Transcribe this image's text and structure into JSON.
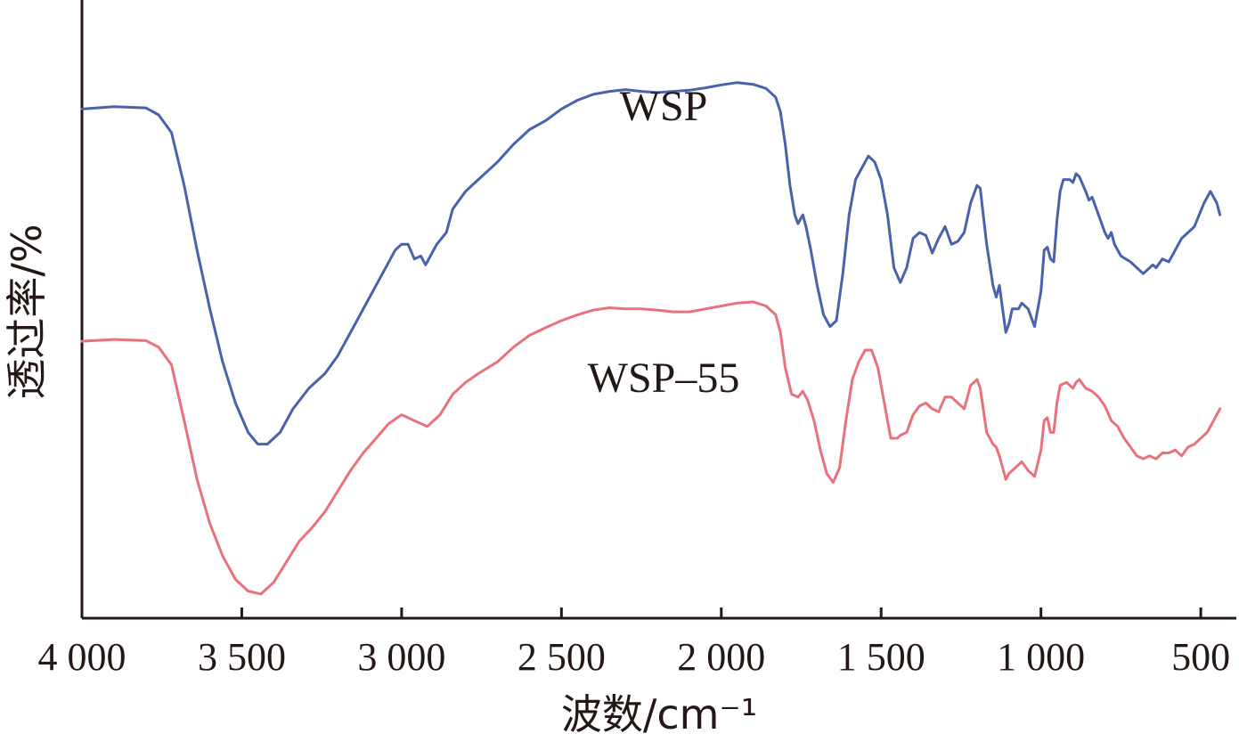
{
  "chart_data": {
    "type": "line",
    "xlabel": "波数/cm⁻¹",
    "ylabel": "透过率/%",
    "xlim": [
      4000,
      400
    ],
    "x_reversed": true,
    "y_ticks_shown": false,
    "grid": false,
    "xticks": [
      {
        "value": 4000,
        "label": "4 000"
      },
      {
        "value": 3500,
        "label": "3 500"
      },
      {
        "value": 3000,
        "label": "3 000"
      },
      {
        "value": 2500,
        "label": "2 500"
      },
      {
        "value": 2000,
        "label": "2 000"
      },
      {
        "value": 1500,
        "label": "1 500"
      },
      {
        "value": 1000,
        "label": "1 000"
      },
      {
        "value": 500,
        "label": "500"
      }
    ],
    "ylim": [
      0,
      100
    ],
    "series": [
      {
        "name": "WSP",
        "color": "#4a62ab",
        "points": [
          [
            4000,
            86
          ],
          [
            3900,
            86.4
          ],
          [
            3800,
            86.2
          ],
          [
            3760,
            85
          ],
          [
            3720,
            82
          ],
          [
            3680,
            73
          ],
          [
            3640,
            62
          ],
          [
            3600,
            52
          ],
          [
            3560,
            43
          ],
          [
            3520,
            36
          ],
          [
            3480,
            31
          ],
          [
            3450,
            29
          ],
          [
            3420,
            29
          ],
          [
            3380,
            31
          ],
          [
            3340,
            35
          ],
          [
            3290,
            38.5
          ],
          [
            3240,
            41
          ],
          [
            3200,
            44
          ],
          [
            3150,
            49
          ],
          [
            3100,
            54
          ],
          [
            3060,
            58
          ],
          [
            3020,
            62
          ],
          [
            3000,
            63
          ],
          [
            2980,
            63
          ],
          [
            2960,
            60.5
          ],
          [
            2940,
            61
          ],
          [
            2925,
            59.5
          ],
          [
            2910,
            61
          ],
          [
            2890,
            63
          ],
          [
            2860,
            65
          ],
          [
            2840,
            69
          ],
          [
            2800,
            72
          ],
          [
            2760,
            74
          ],
          [
            2700,
            77
          ],
          [
            2650,
            80
          ],
          [
            2600,
            82.5
          ],
          [
            2550,
            84
          ],
          [
            2500,
            86
          ],
          [
            2450,
            87.5
          ],
          [
            2400,
            88.5
          ],
          [
            2350,
            89
          ],
          [
            2300,
            89.3
          ],
          [
            2250,
            89
          ],
          [
            2200,
            88.8
          ],
          [
            2150,
            89
          ],
          [
            2100,
            89.2
          ],
          [
            2050,
            89.6
          ],
          [
            2000,
            90.1
          ],
          [
            1950,
            90.5
          ],
          [
            1900,
            90.2
          ],
          [
            1860,
            89.5
          ],
          [
            1830,
            88
          ],
          [
            1815,
            85.5
          ],
          [
            1800,
            80
          ],
          [
            1785,
            73
          ],
          [
            1770,
            68
          ],
          [
            1760,
            66.5
          ],
          [
            1745,
            68
          ],
          [
            1735,
            66
          ],
          [
            1720,
            62
          ],
          [
            1700,
            56
          ],
          [
            1680,
            51
          ],
          [
            1660,
            49
          ],
          [
            1640,
            50
          ],
          [
            1620,
            58
          ],
          [
            1600,
            68
          ],
          [
            1580,
            74
          ],
          [
            1560,
            76
          ],
          [
            1540,
            78
          ],
          [
            1520,
            77
          ],
          [
            1500,
            74
          ],
          [
            1480,
            68
          ],
          [
            1460,
            59
          ],
          [
            1440,
            56.5
          ],
          [
            1420,
            59
          ],
          [
            1400,
            64
          ],
          [
            1380,
            65
          ],
          [
            1360,
            64.5
          ],
          [
            1340,
            61.5
          ],
          [
            1320,
            64
          ],
          [
            1300,
            66
          ],
          [
            1280,
            63
          ],
          [
            1260,
            63.5
          ],
          [
            1240,
            65
          ],
          [
            1220,
            70
          ],
          [
            1200,
            73
          ],
          [
            1190,
            72.5
          ],
          [
            1170,
            63
          ],
          [
            1150,
            56
          ],
          [
            1140,
            54
          ],
          [
            1130,
            56
          ],
          [
            1120,
            52
          ],
          [
            1110,
            48
          ],
          [
            1100,
            49.5
          ],
          [
            1090,
            52
          ],
          [
            1070,
            52
          ],
          [
            1060,
            53
          ],
          [
            1040,
            52
          ],
          [
            1020,
            49
          ],
          [
            1000,
            55
          ],
          [
            990,
            62
          ],
          [
            980,
            62.5
          ],
          [
            970,
            60.5
          ],
          [
            960,
            60
          ],
          [
            950,
            67
          ],
          [
            940,
            72
          ],
          [
            930,
            74
          ],
          [
            910,
            74
          ],
          [
            900,
            73.5
          ],
          [
            890,
            75
          ],
          [
            880,
            74.5
          ],
          [
            860,
            72
          ],
          [
            850,
            70.5
          ],
          [
            840,
            71
          ],
          [
            820,
            68
          ],
          [
            800,
            65
          ],
          [
            790,
            64
          ],
          [
            780,
            65
          ],
          [
            770,
            63
          ],
          [
            750,
            61
          ],
          [
            720,
            60
          ],
          [
            700,
            59
          ],
          [
            680,
            58
          ],
          [
            650,
            59.5
          ],
          [
            640,
            59
          ],
          [
            620,
            60.5
          ],
          [
            600,
            60
          ],
          [
            580,
            62
          ],
          [
            560,
            64
          ],
          [
            540,
            65
          ],
          [
            520,
            66
          ],
          [
            505,
            68
          ],
          [
            490,
            70
          ],
          [
            480,
            71
          ],
          [
            470,
            72
          ],
          [
            460,
            71
          ],
          [
            450,
            70
          ],
          [
            440,
            68
          ]
        ]
      },
      {
        "name": "WSP–55",
        "color": "#e8727c",
        "points": [
          [
            4000,
            46.5
          ],
          [
            3900,
            46.8
          ],
          [
            3800,
            46.6
          ],
          [
            3760,
            45.5
          ],
          [
            3720,
            42.5
          ],
          [
            3680,
            33
          ],
          [
            3640,
            23
          ],
          [
            3600,
            15.5
          ],
          [
            3560,
            10
          ],
          [
            3520,
            6
          ],
          [
            3480,
            4
          ],
          [
            3440,
            3.5
          ],
          [
            3400,
            5.5
          ],
          [
            3360,
            9
          ],
          [
            3320,
            12.5
          ],
          [
            3280,
            14.8
          ],
          [
            3240,
            17.5
          ],
          [
            3200,
            21
          ],
          [
            3160,
            24.5
          ],
          [
            3120,
            27.5
          ],
          [
            3080,
            30
          ],
          [
            3040,
            32.5
          ],
          [
            3000,
            34
          ],
          [
            2960,
            33
          ],
          [
            2920,
            32
          ],
          [
            2880,
            34
          ],
          [
            2840,
            37.5
          ],
          [
            2800,
            39.5
          ],
          [
            2760,
            41
          ],
          [
            2700,
            43
          ],
          [
            2650,
            45.5
          ],
          [
            2600,
            47.5
          ],
          [
            2550,
            48.8
          ],
          [
            2500,
            50
          ],
          [
            2450,
            51
          ],
          [
            2400,
            51.8
          ],
          [
            2350,
            52.2
          ],
          [
            2300,
            52
          ],
          [
            2250,
            52
          ],
          [
            2200,
            51.8
          ],
          [
            2150,
            51.5
          ],
          [
            2100,
            51.5
          ],
          [
            2050,
            52
          ],
          [
            2000,
            52.5
          ],
          [
            1950,
            53
          ],
          [
            1900,
            53.2
          ],
          [
            1860,
            52.5
          ],
          [
            1830,
            51
          ],
          [
            1815,
            48
          ],
          [
            1800,
            42
          ],
          [
            1780,
            37.5
          ],
          [
            1760,
            37
          ],
          [
            1745,
            38
          ],
          [
            1730,
            36.5
          ],
          [
            1710,
            33
          ],
          [
            1690,
            28
          ],
          [
            1670,
            24
          ],
          [
            1650,
            22.5
          ],
          [
            1630,
            25
          ],
          [
            1610,
            33
          ],
          [
            1590,
            40
          ],
          [
            1570,
            43
          ],
          [
            1550,
            45
          ],
          [
            1530,
            45
          ],
          [
            1510,
            42
          ],
          [
            1490,
            36
          ],
          [
            1470,
            30
          ],
          [
            1450,
            30
          ],
          [
            1440,
            30.5
          ],
          [
            1420,
            31
          ],
          [
            1400,
            34
          ],
          [
            1380,
            35.5
          ],
          [
            1360,
            36
          ],
          [
            1340,
            35
          ],
          [
            1320,
            34.5
          ],
          [
            1300,
            37
          ],
          [
            1280,
            37
          ],
          [
            1260,
            36
          ],
          [
            1240,
            35
          ],
          [
            1220,
            39
          ],
          [
            1200,
            40
          ],
          [
            1190,
            38.5
          ],
          [
            1170,
            31
          ],
          [
            1150,
            29
          ],
          [
            1140,
            28.5
          ],
          [
            1130,
            27
          ],
          [
            1120,
            25
          ],
          [
            1110,
            23
          ],
          [
            1100,
            24
          ],
          [
            1080,
            25
          ],
          [
            1060,
            26
          ],
          [
            1040,
            24.5
          ],
          [
            1020,
            23.5
          ],
          [
            1000,
            28
          ],
          [
            990,
            33
          ],
          [
            980,
            33.5
          ],
          [
            970,
            31
          ],
          [
            960,
            31
          ],
          [
            950,
            36
          ],
          [
            940,
            39
          ],
          [
            920,
            39.5
          ],
          [
            900,
            38.5
          ],
          [
            890,
            39.5
          ],
          [
            880,
            40
          ],
          [
            860,
            38.5
          ],
          [
            840,
            38
          ],
          [
            820,
            37
          ],
          [
            800,
            35.5
          ],
          [
            780,
            33
          ],
          [
            760,
            32
          ],
          [
            740,
            30
          ],
          [
            720,
            28.5
          ],
          [
            700,
            27
          ],
          [
            680,
            26.5
          ],
          [
            660,
            27
          ],
          [
            640,
            26.5
          ],
          [
            620,
            27.5
          ],
          [
            600,
            27.5
          ],
          [
            580,
            28
          ],
          [
            560,
            27
          ],
          [
            540,
            28.5
          ],
          [
            520,
            29
          ],
          [
            500,
            30
          ],
          [
            480,
            31
          ],
          [
            460,
            33
          ],
          [
            440,
            35
          ]
        ]
      }
    ]
  }
}
